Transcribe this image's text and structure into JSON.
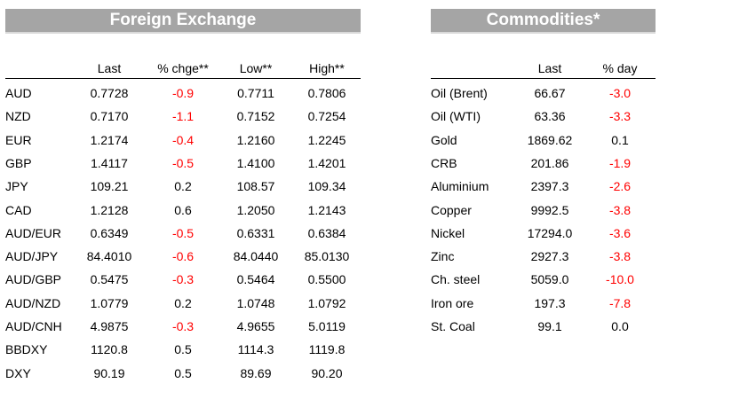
{
  "fx": {
    "title": "Foreign Exchange",
    "columns": [
      "Last",
      "% chge**",
      "Low**",
      "High**"
    ],
    "rows": [
      {
        "name": "AUD",
        "last": "0.7728",
        "chg": "-0.9",
        "low": "0.7711",
        "high": "0.7806"
      },
      {
        "name": "NZD",
        "last": "0.7170",
        "chg": "-1.1",
        "low": "0.7152",
        "high": "0.7254"
      },
      {
        "name": "EUR",
        "last": "1.2174",
        "chg": "-0.4",
        "low": "1.2160",
        "high": "1.2245"
      },
      {
        "name": "GBP",
        "last": "1.4117",
        "chg": "-0.5",
        "low": "1.4100",
        "high": "1.4201"
      },
      {
        "name": "JPY",
        "last": "109.21",
        "chg": "0.2",
        "low": "108.57",
        "high": "109.34"
      },
      {
        "name": "CAD",
        "last": "1.2128",
        "chg": "0.6",
        "low": "1.2050",
        "high": "1.2143"
      },
      {
        "name": "AUD/EUR",
        "last": "0.6349",
        "chg": "-0.5",
        "low": "0.6331",
        "high": "0.6384"
      },
      {
        "name": "AUD/JPY",
        "last": "84.4010",
        "chg": "-0.6",
        "low": "84.0440",
        "high": "85.0130"
      },
      {
        "name": "AUD/GBP",
        "last": "0.5475",
        "chg": "-0.3",
        "low": "0.5464",
        "high": "0.5500"
      },
      {
        "name": "AUD/NZD",
        "last": "1.0779",
        "chg": "0.2",
        "low": "1.0748",
        "high": "1.0792"
      },
      {
        "name": "AUD/CNH",
        "last": "4.9875",
        "chg": "-0.3",
        "low": "4.9655",
        "high": "5.0119"
      },
      {
        "name": "BBDXY",
        "last": "1120.8",
        "chg": "0.5",
        "low": "1114.3",
        "high": "1119.8"
      },
      {
        "name": "DXY",
        "last": "90.19",
        "chg": "0.5",
        "low": "89.69",
        "high": "90.20"
      }
    ]
  },
  "commodities": {
    "title": "Commodities*",
    "columns": [
      "Last",
      "% day"
    ],
    "rows": [
      {
        "name": "Oil (Brent)",
        "last": "66.67",
        "chg": "-3.0"
      },
      {
        "name": "Oil (WTI)",
        "last": "63.36",
        "chg": "-3.3"
      },
      {
        "name": "Gold",
        "last": "1869.62",
        "chg": "0.1"
      },
      {
        "name": "CRB",
        "last": "201.86",
        "chg": "-1.9"
      },
      {
        "name": "Aluminium",
        "last": "2397.3",
        "chg": "-2.6"
      },
      {
        "name": "Copper",
        "last": "9992.5",
        "chg": "-3.8"
      },
      {
        "name": "Nickel",
        "last": "17294.0",
        "chg": "-3.6"
      },
      {
        "name": "Zinc",
        "last": "2927.3",
        "chg": "-3.8"
      },
      {
        "name": "Ch. steel",
        "last": "5059.0",
        "chg": "-10.0"
      },
      {
        "name": "Iron ore",
        "last": "197.3",
        "chg": "-7.8"
      },
      {
        "name": "St. Coal",
        "last": "99.1",
        "chg": "0.0"
      }
    ]
  },
  "colors": {
    "banner": "#a5a5a5",
    "negative": "#ff0000",
    "positive": "#000000"
  }
}
